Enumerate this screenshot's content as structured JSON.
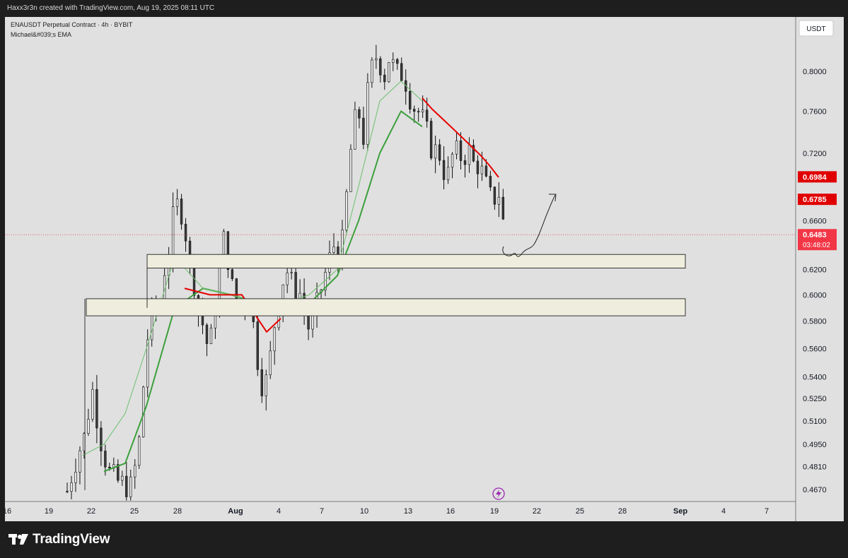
{
  "header": {
    "attribution": "Haxx3r3n created with TradingView.com, Aug 19, 2025 08:11 UTC"
  },
  "legend": {
    "symbol_line": "ENAUSDT Perpetual Contract · 4h · BYBIT",
    "indicator_line": "Michael&#039;s EMA"
  },
  "footer": {
    "brand": "TradingView"
  },
  "chart_data": {
    "type": "candlestick",
    "symbol": "ENAUSDT Perpetual Contract",
    "interval": "4h",
    "exchange": "BYBIT",
    "currency": "USDT",
    "y_scale": "log",
    "ylim": [
      0.455,
      0.88
    ],
    "y_ticks": [
      "0.8000",
      "0.7600",
      "0.7200",
      "0.6600",
      "0.6200",
      "0.6000",
      "0.5800",
      "0.5600",
      "0.5400",
      "0.5250",
      "0.5100",
      "0.4950",
      "0.4810",
      "0.4670"
    ],
    "x_ticks": [
      "16",
      "19",
      "22",
      "25",
      "28",
      "Aug",
      "4",
      "7",
      "10",
      "13",
      "16",
      "19",
      "22",
      "25",
      "28",
      "Sep",
      "4",
      "7"
    ],
    "grid": false,
    "price_labels": [
      {
        "value": "0.6984",
        "color": "#e00000"
      },
      {
        "value": "0.6785",
        "color": "#e00000"
      },
      {
        "value": "0.6483",
        "sub": "03:48:02",
        "color": "#f23645"
      }
    ],
    "current_price": 0.6483,
    "zones": [
      {
        "name": "upper demand zone",
        "low": 0.621,
        "high": 0.632
      },
      {
        "name": "lower demand zone",
        "low": 0.584,
        "high": 0.597
      }
    ],
    "price_path": [
      [
        0,
        0.466
      ],
      [
        8,
        0.488
      ],
      [
        14,
        0.5
      ],
      [
        20,
        0.532
      ],
      [
        27,
        0.498
      ],
      [
        33,
        0.478
      ],
      [
        40,
        0.472
      ],
      [
        46,
        0.47
      ],
      [
        52,
        0.468
      ],
      [
        58,
        0.498
      ],
      [
        64,
        0.565
      ],
      [
        70,
        0.595
      ],
      [
        74,
        0.58
      ],
      [
        78,
        0.62
      ],
      [
        82,
        0.635
      ],
      [
        86,
        0.67
      ],
      [
        90,
        0.675
      ],
      [
        94,
        0.66
      ],
      [
        98,
        0.625
      ],
      [
        102,
        0.61
      ],
      [
        106,
        0.585
      ],
      [
        110,
        0.575
      ],
      [
        114,
        0.555
      ],
      [
        118,
        0.585
      ],
      [
        122,
        0.615
      ],
      [
        126,
        0.645
      ],
      [
        130,
        0.625
      ],
      [
        134,
        0.595
      ],
      [
        138,
        0.585
      ],
      [
        142,
        0.6
      ],
      [
        146,
        0.595
      ],
      [
        150,
        0.575
      ],
      [
        154,
        0.545
      ],
      [
        158,
        0.53
      ],
      [
        162,
        0.545
      ],
      [
        166,
        0.575
      ],
      [
        170,
        0.595
      ],
      [
        174,
        0.615
      ],
      [
        178,
        0.62
      ],
      [
        182,
        0.6
      ],
      [
        186,
        0.605
      ],
      [
        190,
        0.59
      ],
      [
        194,
        0.575
      ],
      [
        198,
        0.58
      ],
      [
        202,
        0.598
      ],
      [
        206,
        0.612
      ],
      [
        210,
        0.625
      ],
      [
        214,
        0.64
      ],
      [
        218,
        0.63
      ],
      [
        222,
        0.645
      ],
      [
        226,
        0.705
      ],
      [
        230,
        0.745
      ],
      [
        234,
        0.76
      ],
      [
        238,
        0.735
      ],
      [
        242,
        0.785
      ],
      [
        246,
        0.81
      ],
      [
        250,
        0.82
      ],
      [
        254,
        0.79
      ],
      [
        258,
        0.815
      ],
      [
        262,
        0.805
      ],
      [
        266,
        0.795
      ],
      [
        270,
        0.8
      ],
      [
        274,
        0.78
      ],
      [
        278,
        0.765
      ],
      [
        282,
        0.76
      ],
      [
        286,
        0.75
      ],
      [
        290,
        0.735
      ],
      [
        294,
        0.72
      ],
      [
        298,
        0.725
      ],
      [
        302,
        0.705
      ],
      [
        306,
        0.7
      ],
      [
        310,
        0.72
      ],
      [
        314,
        0.72
      ],
      [
        318,
        0.715
      ],
      [
        322,
        0.725
      ],
      [
        326,
        0.71
      ],
      [
        330,
        0.71
      ],
      [
        334,
        0.7
      ],
      [
        338,
        0.685
      ],
      [
        342,
        0.675
      ],
      [
        346,
        0.69
      ],
      [
        350,
        0.66
      ],
      [
        352,
        0.648
      ]
    ],
    "series": [
      {
        "name": "",
        "color": "#e60000",
        "values": [
          0.773,
          0.762,
          0.753,
          0.744,
          0.735,
          0.726,
          0.717,
          0.708,
          0.698
        ]
      },
      {
        "name": "",
        "color": "#3ca03c",
        "values": [
          0.488,
          0.535,
          0.57,
          0.59,
          0.605,
          0.62,
          0.66,
          0.72,
          0.76
        ]
      }
    ]
  }
}
